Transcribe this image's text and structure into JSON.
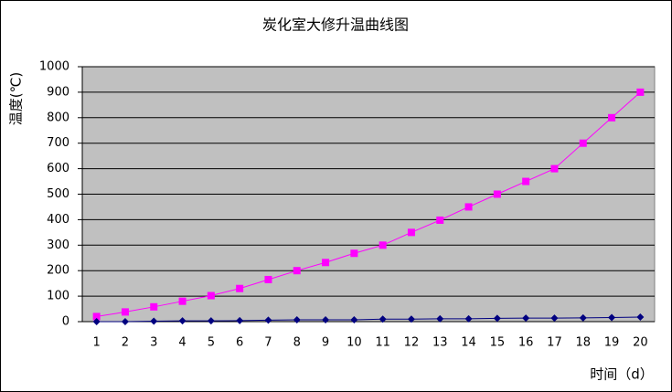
{
  "chart_data": {
    "type": "line",
    "title": "炭化室大修升温曲线图",
    "y_label": "温度(℃)",
    "x_label": "时间（d）",
    "categories": [
      "1",
      "2",
      "3",
      "4",
      "5",
      "6",
      "7",
      "8",
      "9",
      "10",
      "11",
      "12",
      "13",
      "14",
      "15",
      "16",
      "17",
      "18",
      "19",
      "20"
    ],
    "series": [
      {
        "color": "#ff00ff",
        "marker": "square",
        "values": [
          20,
          38,
          58,
          80,
          102,
          130,
          165,
          200,
          232,
          268,
          300,
          350,
          398,
          450,
          500,
          550,
          600,
          700,
          800,
          900
        ]
      },
      {
        "color": "#000080",
        "marker": "diamond",
        "values": [
          0,
          0,
          2,
          3,
          3,
          4,
          6,
          7,
          7,
          7,
          10,
          10,
          11,
          11,
          13,
          14,
          14,
          15,
          16,
          18
        ]
      }
    ],
    "ylim": [
      0,
      1000
    ],
    "yticks": [
      0,
      100,
      200,
      300,
      400,
      500,
      600,
      700,
      800,
      900,
      1000
    ],
    "grid": true,
    "plot_background": "#c0c0c0"
  }
}
